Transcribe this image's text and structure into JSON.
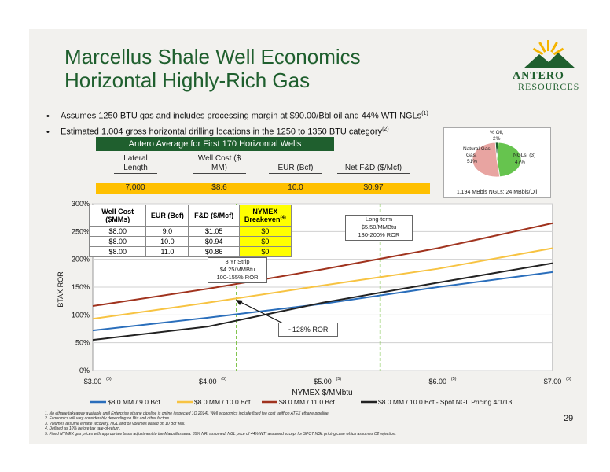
{
  "title_line1": "Marcellus Shale Well Economics",
  "title_line2": "Horizontal Highly-Rich Gas",
  "logo": {
    "line1": "ANTERO",
    "line2": "RESOURCES"
  },
  "bullets": [
    {
      "text": "Assumes 1250 BTU gas and includes processing margin at $90.00/Bbl oil and 44% WTI NGLs",
      "sup": "(1)"
    },
    {
      "text": "Estimated 1,004 gross horizontal drilling locations in the 1250 to 1350 BTU category",
      "sup": "(2)"
    }
  ],
  "summary_table": {
    "header": "Antero Average for First 170 Horizontal Wells",
    "columns": [
      "Lateral Length",
      "Well Cost ($ MM)",
      "EUR (Bcf)",
      "Net F&D ($/Mcf)"
    ],
    "values": [
      "7,000",
      "$8.6",
      "10.0",
      "$0.97"
    ]
  },
  "pie": {
    "slices": [
      {
        "label": "Natural Gas,",
        "pct_label": "51%",
        "value": 51,
        "color": "#e8a4a1"
      },
      {
        "label": "NGLs,",
        "sup": "(3)",
        "pct_label": "47%",
        "value": 47,
        "color": "#66c44e"
      },
      {
        "label": "% Oil,",
        "pct_label": "2%",
        "value": 2,
        "color": "#1f5f2e"
      }
    ],
    "caption": "1,194 MBbls NGLs; 24 MBbls/Oil"
  },
  "well_table": {
    "headers": [
      "Well Cost ($MMs)",
      "EUR (Bcf)",
      "F&D ($/Mcf)",
      "NYMEX Breakeven"
    ],
    "breakeven_sup": "(4)",
    "rows": [
      [
        "$8.00",
        "9.0",
        "$1.05",
        "$0"
      ],
      [
        "$8.00",
        "10.0",
        "$0.94",
        "$0"
      ],
      [
        "$8.00",
        "11.0",
        "$0.86",
        "$0"
      ]
    ]
  },
  "callouts": {
    "strip": [
      "3 Yr Strip",
      "$4.25/MMBtu",
      "100-155% ROR"
    ],
    "longterm": [
      "Long-term",
      "$5.50/MMBtu",
      "130-200% ROR"
    ],
    "ror": "~128% ROR"
  },
  "chart_data": {
    "type": "line",
    "xlabel": "NYMEX $/MMbtu",
    "ylabel": "BTAX ROR",
    "xlim": [
      3.0,
      7.0
    ],
    "ylim": [
      0,
      300
    ],
    "x_ticks": [
      "$3.00",
      "$4.00",
      "$5.00",
      "$6.00",
      "$7.00"
    ],
    "x_tick_sup": "(5)",
    "y_ticks": [
      "0%",
      "50%",
      "100%",
      "150%",
      "200%",
      "250%",
      "300%"
    ],
    "vlines": [
      4.25,
      5.5
    ],
    "series": [
      {
        "name": "$8.0 MM / 9.0 Bcf",
        "color": "#2a6ebb",
        "x": [
          3.0,
          4.0,
          5.0,
          6.0,
          7.0
        ],
        "y": [
          72,
          95,
          120,
          150,
          177
        ]
      },
      {
        "name": "$8.0 MM / 10.0 Bcf",
        "color": "#f7c342",
        "x": [
          3.0,
          4.0,
          5.0,
          6.0,
          7.0
        ],
        "y": [
          93,
          122,
          153,
          183,
          220
        ]
      },
      {
        "name": "$8.0 MM / 11.0 Bcf",
        "color": "#a0331e",
        "x": [
          3.0,
          4.0,
          5.0,
          6.0,
          7.0
        ],
        "y": [
          116,
          147,
          182,
          220,
          265
        ]
      },
      {
        "name": "$8.0 MM / 10.0 Bcf - Spot NGL Pricing 4/1/13",
        "color": "#222222",
        "x": [
          3.0,
          4.0,
          5.0,
          6.0,
          7.0
        ],
        "y": [
          55,
          79,
          122,
          158,
          193
        ]
      }
    ]
  },
  "footnotes": [
    "1.  No ethane takeaway available until Enterprise ethane pipeline is online (expected 1Q 2014). Well economics include fixed fee cost tariff on ATEX ethane pipeline.",
    "2.  Economics will vary considerably depending on Btu and other factors.",
    "3.  Volumes assume ethane recovery.  NGL and oil volumes based on 10 Bcf well.",
    "4.  Defined as 10% before tax rate-of-return.",
    "5.  Fixed NYMEX gas prices with appropriate basis adjustment to the Marcellus area. 85% NRI assumed.  NGL price of 44% WTI assumed except for SPOT NGL pricing case which assumes C2 rejection."
  ],
  "page_number": "29"
}
